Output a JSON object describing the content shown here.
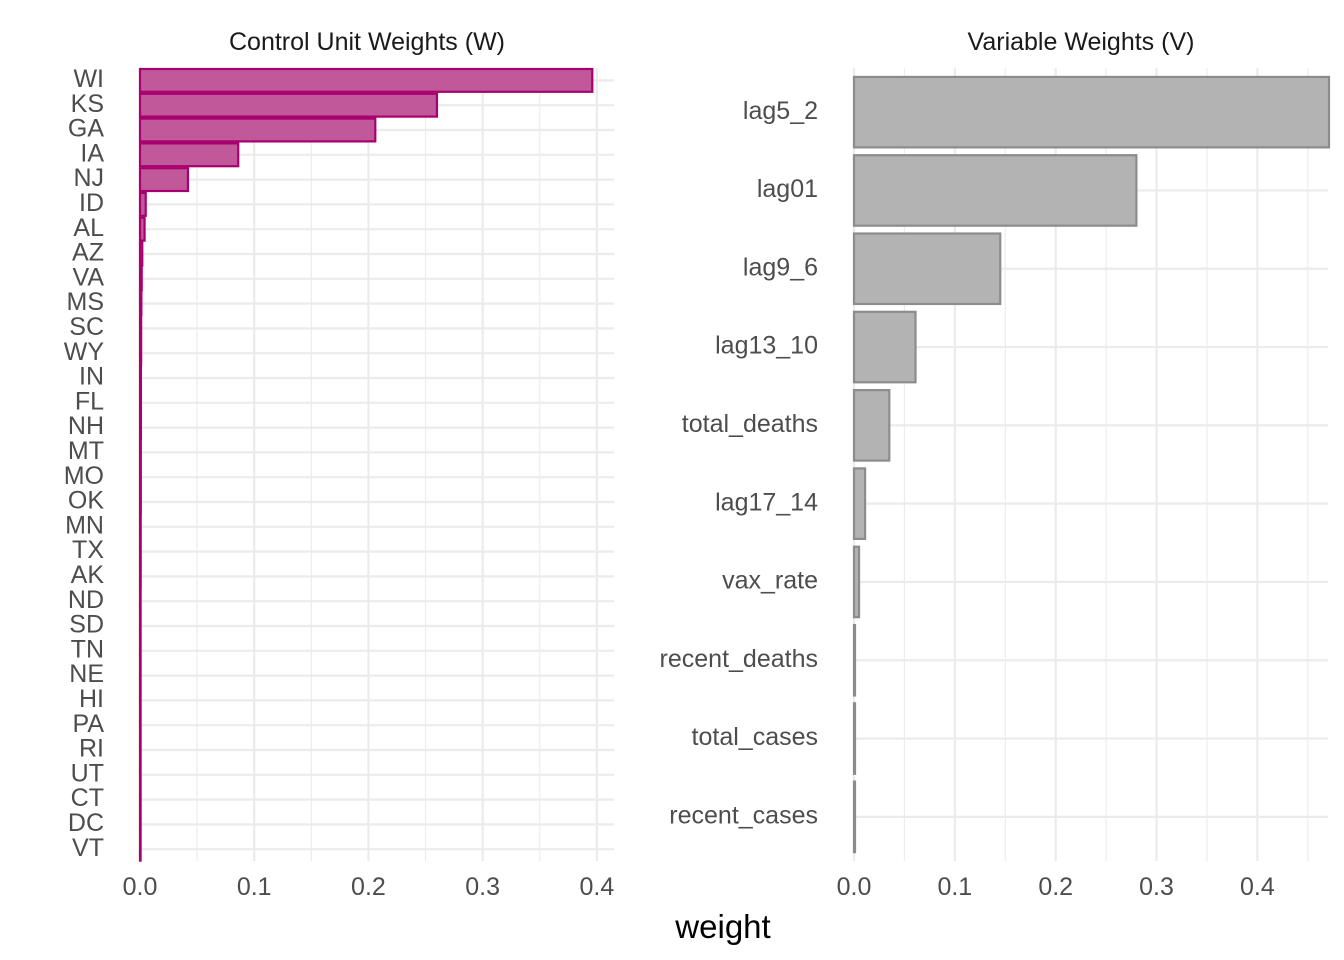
{
  "shared": {
    "xlabel": "weight"
  },
  "chart_data": [
    {
      "type": "bar",
      "orientation": "horizontal",
      "title": "Control Unit Weights (W)",
      "xlabel": "weight",
      "xlim": [
        0,
        0.415
      ],
      "xticks": [
        0.0,
        0.1,
        0.2,
        0.3,
        0.4
      ],
      "xtick_labels": [
        "0.0",
        "0.1",
        "0.2",
        "0.3",
        "0.4"
      ],
      "grid": true,
      "bar_fill": "#c0589a",
      "bar_stroke": "#a8006e",
      "categories": [
        "WI",
        "KS",
        "GA",
        "IA",
        "NJ",
        "ID",
        "AL",
        "AZ",
        "VA",
        "MS",
        "SC",
        "WY",
        "IN",
        "FL",
        "NH",
        "MT",
        "MO",
        "OK",
        "MN",
        "TX",
        "AK",
        "ND",
        "SD",
        "TN",
        "NE",
        "HI",
        "PA",
        "RI",
        "UT",
        "CT",
        "DC",
        "VT"
      ],
      "values": [
        0.396,
        0.26,
        0.206,
        0.086,
        0.042,
        0.005,
        0.004,
        0.002,
        0.0015,
        0.0012,
        0.001,
        0.001,
        0.0008,
        0.0008,
        0.0008,
        0.0007,
        0.0007,
        0.0007,
        0.0006,
        0.0006,
        0.0006,
        0.0005,
        0.0005,
        0.0005,
        0.0005,
        0.0004,
        0.0004,
        0.0004,
        0.0004,
        0.0003,
        0.0003,
        0.0003
      ]
    },
    {
      "type": "bar",
      "orientation": "horizontal",
      "title": "Variable Weights (V)",
      "xlabel": "weight",
      "xlim": [
        0,
        0.47
      ],
      "xticks": [
        0.0,
        0.1,
        0.2,
        0.3,
        0.4
      ],
      "xtick_labels": [
        "0.0",
        "0.1",
        "0.2",
        "0.3",
        "0.4"
      ],
      "grid": true,
      "bar_fill": "#b3b3b3",
      "bar_stroke": "#8c8c8c",
      "categories": [
        "lag5_2",
        "lag01",
        "lag9_6",
        "lag13_10",
        "total_deaths",
        "lag17_14",
        "vax_rate",
        "recent_deaths",
        "total_cases",
        "recent_cases"
      ],
      "values": [
        0.471,
        0.28,
        0.145,
        0.061,
        0.035,
        0.011,
        0.005,
        0.001,
        0.001,
        0.001
      ]
    }
  ]
}
